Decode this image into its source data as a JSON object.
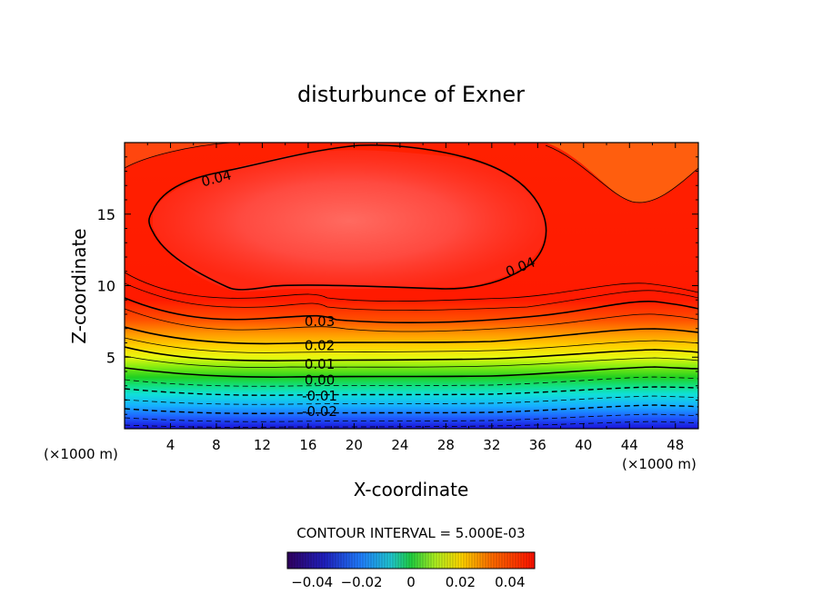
{
  "chart_data": {
    "type": "heatmap",
    "title": "disturbunce of Exner",
    "xlabel": "X-coordinate",
    "ylabel": "Z-coordinate",
    "x_unit": "(×1000 m)",
    "y_unit": "(×1000 m)",
    "xlim": [
      0,
      50
    ],
    "ylim": [
      0,
      20
    ],
    "x_ticks": [
      4,
      8,
      12,
      16,
      20,
      24,
      28,
      32,
      36,
      40,
      44,
      48
    ],
    "y_ticks": [
      5,
      10,
      15
    ],
    "contour_interval_text": "CONTOUR INTERVAL = 5.000E-03",
    "contour_labels": [
      {
        "text": "0.04",
        "x": 8,
        "z": 17.5
      },
      {
        "text": "0.04",
        "x": 34.5,
        "z": 11.3
      },
      {
        "text": "0.03",
        "x": 17,
        "z": 7.5
      },
      {
        "text": "0.02",
        "x": 17,
        "z": 5.8
      },
      {
        "text": "0.01",
        "x": 17,
        "z": 4.5
      },
      {
        "text": "0.00",
        "x": 17,
        "z": 3.4
      },
      {
        "text": "-0.01",
        "x": 17,
        "z": 2.3
      },
      {
        "text": "-0.02",
        "x": 17,
        "z": 1.2
      }
    ],
    "colorbar": {
      "ticks": [
        "-0.04",
        "-0.02",
        "0",
        "0.02",
        "0.04"
      ],
      "range": [
        -0.05,
        0.05
      ]
    },
    "field_description": [
      {
        "z_range": [
          0,
          1
        ],
        "value": -0.035
      },
      {
        "z_range": [
          1,
          2
        ],
        "value": -0.02
      },
      {
        "z_range": [
          2,
          3.5
        ],
        "value": -0.005
      },
      {
        "z_range": [
          3.5,
          5
        ],
        "value": 0.01
      },
      {
        "z_range": [
          5,
          7
        ],
        "value": 0.02
      },
      {
        "z_range": [
          7,
          10
        ],
        "value": 0.035
      },
      {
        "z_range": [
          10,
          20
        ],
        "value": 0.045
      }
    ]
  }
}
